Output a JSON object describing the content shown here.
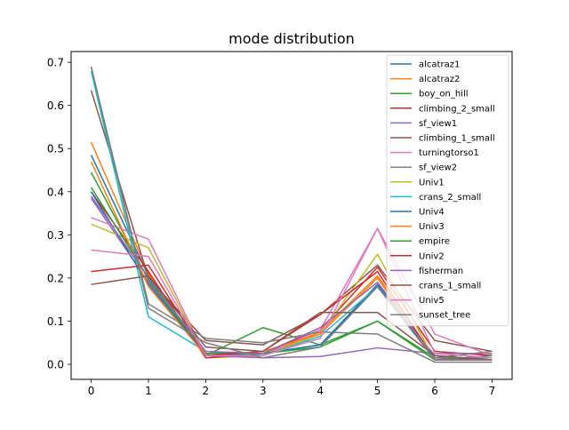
{
  "chart_data": {
    "type": "line",
    "title": "mode distribution",
    "xlabel": "",
    "ylabel": "",
    "x": [
      0,
      1,
      2,
      3,
      4,
      5,
      6,
      7
    ],
    "xticks": [
      "0",
      "1",
      "2",
      "3",
      "4",
      "5",
      "6",
      "7"
    ],
    "yticks": [
      "0.0",
      "0.1",
      "0.2",
      "0.3",
      "0.4",
      "0.5",
      "0.6",
      "0.7"
    ],
    "xlim": [
      -0.35,
      7.35
    ],
    "ylim": [
      -0.035,
      0.725
    ],
    "grid": false,
    "legend_position": "top-right",
    "series": [
      {
        "name": "alcatraz1",
        "color": "#1f77b4",
        "values": [
          0.485,
          0.205,
          0.02,
          0.025,
          0.045,
          0.185,
          0.02,
          0.01
        ]
      },
      {
        "name": "alcatraz2",
        "color": "#ff7f0e",
        "values": [
          0.515,
          0.21,
          0.015,
          0.02,
          0.075,
          0.205,
          0.015,
          0.01
        ]
      },
      {
        "name": "boy_on_hill",
        "color": "#2ca02c",
        "values": [
          0.445,
          0.195,
          0.02,
          0.085,
          0.045,
          0.1,
          0.015,
          0.03
        ]
      },
      {
        "name": "climbing_2_small",
        "color": "#d62728",
        "values": [
          0.4,
          0.215,
          0.015,
          0.025,
          0.08,
          0.225,
          0.03,
          0.02
        ]
      },
      {
        "name": "sf_view1",
        "color": "#9467bd",
        "values": [
          0.385,
          0.19,
          0.02,
          0.015,
          0.018,
          0.038,
          0.025,
          0.025
        ]
      },
      {
        "name": "climbing_1_small",
        "color": "#8c564b",
        "values": [
          0.635,
          0.2,
          0.055,
          0.045,
          0.115,
          0.23,
          0.055,
          0.03
        ]
      },
      {
        "name": "turningtorso1",
        "color": "#e377c2",
        "values": [
          0.34,
          0.29,
          0.02,
          0.02,
          0.08,
          0.315,
          0.07,
          0.02
        ]
      },
      {
        "name": "sf_view2",
        "color": "#7f7f7f",
        "values": [
          0.69,
          0.14,
          0.06,
          0.05,
          0.075,
          0.07,
          0.005,
          0.005
        ]
      },
      {
        "name": "Univ1",
        "color": "#bcbd22",
        "values": [
          0.325,
          0.27,
          0.02,
          0.02,
          0.07,
          0.255,
          0.01,
          0.01
        ]
      },
      {
        "name": "crans_2_small",
        "color": "#17becf",
        "values": [
          0.68,
          0.11,
          0.03,
          0.02,
          0.065,
          0.18,
          0.01,
          0.01
        ]
      },
      {
        "name": "Univ4",
        "color": "#1f77b4",
        "values": [
          0.4,
          0.185,
          0.025,
          0.025,
          0.045,
          0.18,
          0.015,
          0.01
        ]
      },
      {
        "name": "Univ3",
        "color": "#ff7f0e",
        "values": [
          0.47,
          0.18,
          0.02,
          0.03,
          0.07,
          0.2,
          0.01,
          0.01
        ]
      },
      {
        "name": "empire",
        "color": "#2ca02c",
        "values": [
          0.41,
          0.2,
          0.025,
          0.025,
          0.04,
          0.1,
          0.01,
          0.02
        ]
      },
      {
        "name": "Univ2",
        "color": "#d62728",
        "values": [
          0.215,
          0.23,
          0.02,
          0.03,
          0.115,
          0.215,
          0.01,
          0.01
        ]
      },
      {
        "name": "fisherman",
        "color": "#9467bd",
        "values": [
          0.39,
          0.2,
          0.03,
          0.025,
          0.085,
          0.19,
          0.015,
          0.015
        ]
      },
      {
        "name": "crans_1_small",
        "color": "#8c564b",
        "values": [
          0.185,
          0.205,
          0.04,
          0.03,
          0.12,
          0.12,
          0.02,
          0.01
        ]
      },
      {
        "name": "Univ5",
        "color": "#e377c2",
        "values": [
          0.265,
          0.25,
          0.02,
          0.02,
          0.06,
          0.315,
          0.025,
          0.015
        ]
      },
      {
        "name": "sunset_tree",
        "color": "#7f7f7f",
        "values": [
          0.69,
          0.13,
          0.05,
          0.015,
          0.04,
          0.18,
          0.01,
          0.01
        ]
      }
    ]
  }
}
